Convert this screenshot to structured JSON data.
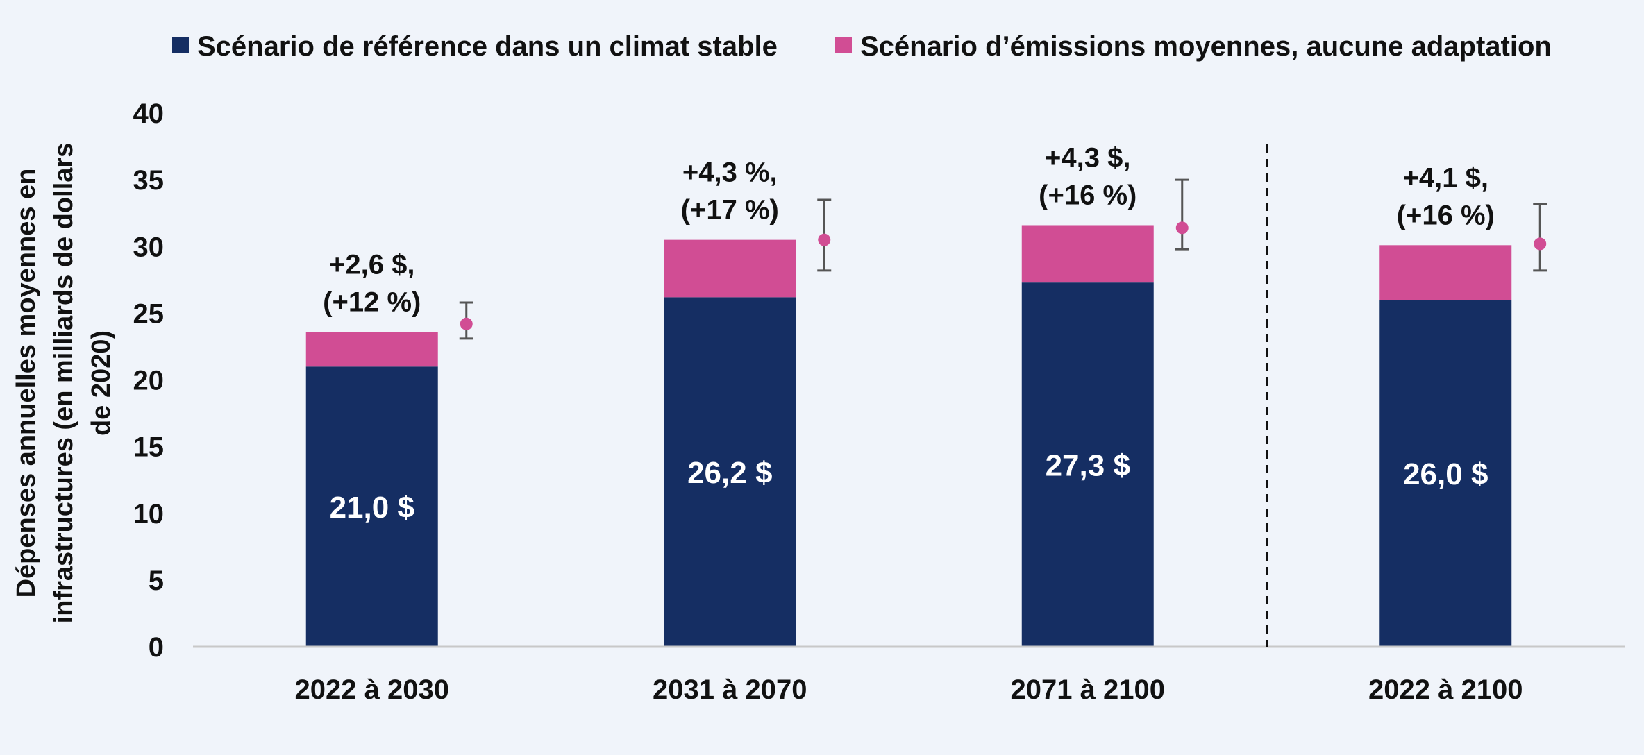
{
  "chart_data": {
    "type": "bar",
    "stacked": true,
    "categories": [
      "2022 à 2030",
      "2031 à 2070",
      "2071 à 2100",
      "2022 à 2100"
    ],
    "series": [
      {
        "name": "Scénario de référence dans un climat stable",
        "color": "#152e63",
        "values": [
          21.0,
          26.2,
          27.3,
          26.0
        ],
        "labels": [
          "21,0 $",
          "26,2 $",
          "27,3 $",
          "26,0 $"
        ]
      },
      {
        "name": "Scénario d’émissions moyennes, aucune adaptation",
        "color": "#d14d94",
        "values": [
          2.6,
          4.3,
          4.3,
          4.1
        ]
      }
    ],
    "annotations": [
      [
        "+2,6 $,",
        "(+12 %)"
      ],
      [
        "+4,3 %,",
        "(+17 %)"
      ],
      [
        "+4,3 $,",
        "(+16 %)"
      ],
      [
        "+4,1 $,",
        "(+16 %)"
      ]
    ],
    "error_bars": [
      {
        "point": 24.2,
        "low": 23.1,
        "high": 25.8
      },
      {
        "point": 30.5,
        "low": 28.2,
        "high": 33.5
      },
      {
        "point": 31.4,
        "low": 29.8,
        "high": 35.0
      },
      {
        "point": 30.2,
        "low": 28.2,
        "high": 33.2
      }
    ],
    "ylabel_lines": [
      "Dépenses annuelles moyennes en",
      "infrastructures (en milliards de dollars",
      "de 2020)"
    ],
    "ylim": [
      0,
      40
    ],
    "yticks": [
      0,
      5,
      10,
      15,
      20,
      25,
      30,
      35,
      40
    ],
    "legend_position": "top",
    "separator_before_category": 3,
    "grid": false,
    "axis_color": "#c8c8c8",
    "errorbar_color": "#555555"
  }
}
